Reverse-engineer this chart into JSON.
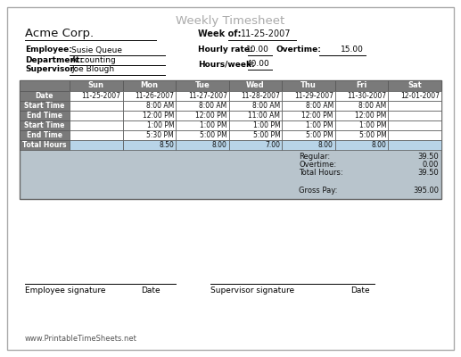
{
  "title": "Weekly Timesheet",
  "company": "Acme Corp.",
  "week_of_label": "Week of:",
  "week_of_value": "11-25-2007",
  "employee_label": "Employee:",
  "employee_value": "Susie Queue",
  "department_label": "Department:",
  "department_value": "Accounting",
  "supervisor_label": "Supervisor:",
  "supervisor_value": "Joe Blough",
  "hourly_rate_label": "Hourly rate:",
  "hourly_rate_value": "10.00",
  "overtime_label": "Overtime:",
  "overtime_value": "15.00",
  "hours_week_label": "Hours/week:",
  "hours_week_value": "40.00",
  "days": [
    "Sun",
    "Mon",
    "Tue",
    "Wed",
    "Thu",
    "Fri",
    "Sat"
  ],
  "row_labels": [
    "Date",
    "Start Time",
    "End Time",
    "Start Time",
    "End Time",
    "Total Hours"
  ],
  "dates": [
    "11-25-2007",
    "11-26-2007",
    "11-27-2007",
    "11-28-2007",
    "11-29-2007",
    "11-30-2007",
    "12-01-2007"
  ],
  "start_time1": [
    "",
    "8:00 AM",
    "8:00 AM",
    "8:00 AM",
    "8:00 AM",
    "8:00 AM",
    ""
  ],
  "end_time1": [
    "",
    "12:00 PM",
    "12:00 PM",
    "11:00 AM",
    "12:00 PM",
    "12:00 PM",
    ""
  ],
  "start_time2": [
    "",
    "1:00 PM",
    "1:00 PM",
    "1:00 PM",
    "1:00 PM",
    "1:00 PM",
    ""
  ],
  "end_time2": [
    "",
    "5:30 PM",
    "5:00 PM",
    "5:00 PM",
    "5:00 PM",
    "5:00 PM",
    ""
  ],
  "total_hours": [
    "",
    "8.50",
    "8.00",
    "7.00",
    "8.00",
    "8.00",
    ""
  ],
  "regular": "39.50",
  "overtime_hours": "0.00",
  "total_hours_sum": "39.50",
  "gross_pay": "395.00",
  "employee_sig_label": "Employee signature",
  "date_label": "Date",
  "supervisor_sig_label": "Supervisor signature",
  "website": "www.PrintableTimeSheets.net",
  "color_header_bg": "#7a7a7a",
  "color_row_label_bg": "#7a7a7a",
  "color_summary_bg": "#b8c4cc",
  "color_white": "#ffffff",
  "color_total_row": "#b8d4e8",
  "color_title": "#aaaaaa",
  "color_border": "#888888",
  "color_black": "#000000"
}
